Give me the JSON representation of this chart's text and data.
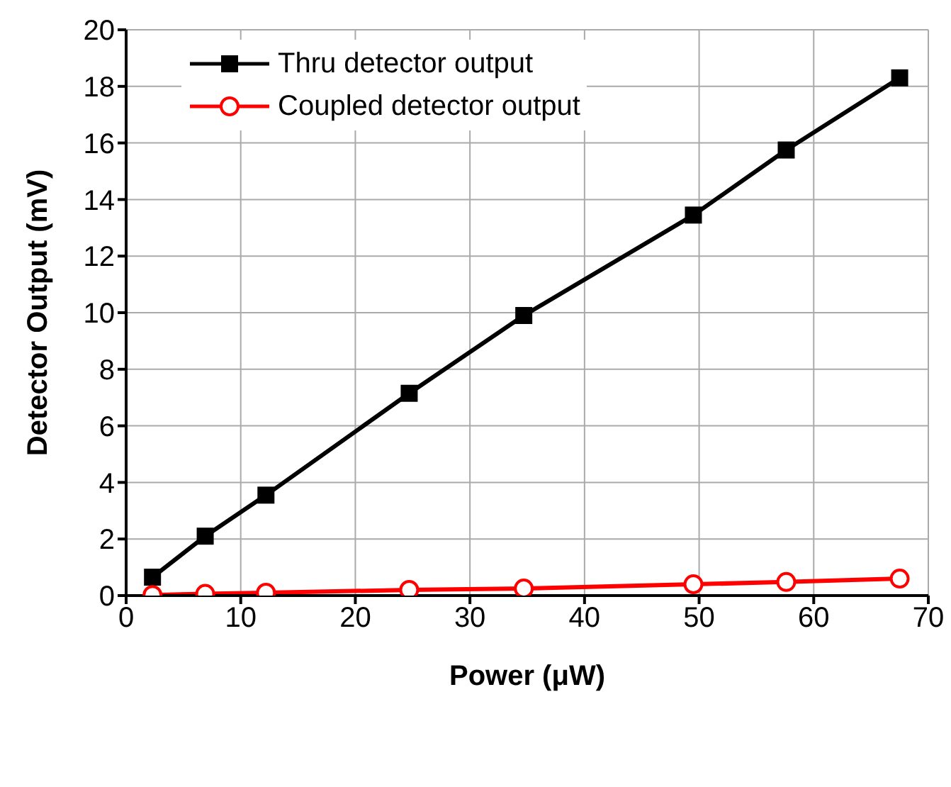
{
  "chart_data": {
    "type": "line",
    "xlabel": "Power (μW)",
    "ylabel": "Detector Output (mV)",
    "x": [
      2.3,
      6.9,
      12.2,
      24.7,
      34.7,
      49.5,
      57.6,
      67.5
    ],
    "series": [
      {
        "name": "Thru detector output",
        "color": "#000000",
        "marker": "square",
        "values": [
          0.65,
          2.1,
          3.55,
          7.15,
          9.9,
          13.45,
          15.75,
          18.3
        ]
      },
      {
        "name": "Coupled detector output",
        "color": "#ff0000",
        "marker": "circle",
        "values": [
          0.02,
          0.06,
          0.1,
          0.2,
          0.25,
          0.4,
          0.48,
          0.6
        ]
      }
    ],
    "xlim": [
      0,
      70
    ],
    "xticks": [
      0,
      10,
      20,
      30,
      40,
      50,
      60,
      70
    ],
    "ylim": [
      0,
      20
    ],
    "yticks": [
      0,
      2,
      4,
      6,
      8,
      10,
      12,
      14,
      16,
      18,
      20
    ],
    "grid": true,
    "legend": "top left"
  }
}
